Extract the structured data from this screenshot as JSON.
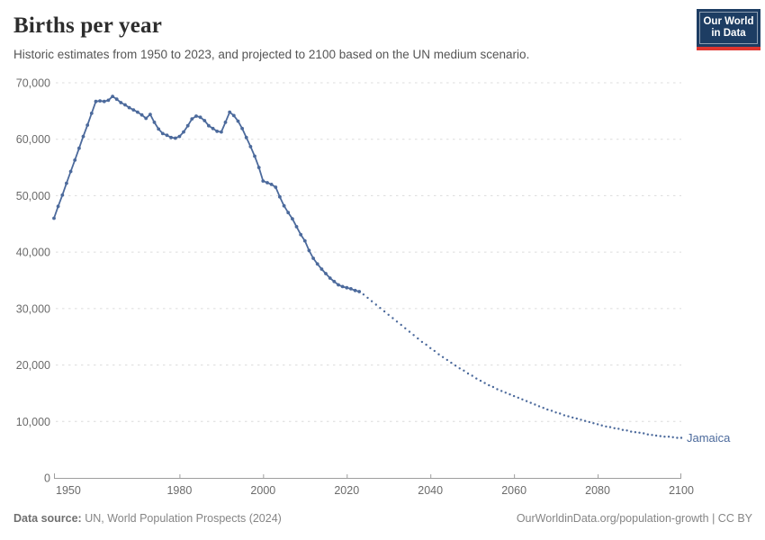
{
  "header": {
    "title": "Births per year",
    "subtitle": "Historic estimates from 1950 to 2023, and projected to 2100 based on the UN medium scenario.",
    "logo": {
      "line1": "Our World",
      "line2": "in Data",
      "bg": "#1d3d63",
      "accent": "#e0352f"
    }
  },
  "footer": {
    "source_label": "Data source:",
    "source_text": " UN, World Population Prospects (2024)",
    "right_text": "OurWorldinData.org/population-growth | CC BY"
  },
  "chart_data": {
    "type": "line",
    "title": "Births per year",
    "entity_label": "Jamaica",
    "line_color": "#4C6A9C",
    "grid": true,
    "grid_color": "#dcdcdc",
    "axis_color": "#9e9e9e",
    "tick_label_color": "#6b6b6b",
    "xlabel": "",
    "ylabel": "",
    "xlim": [
      1950,
      2100
    ],
    "ylim": [
      0,
      70000
    ],
    "xticks": [
      1950,
      1980,
      2000,
      2020,
      2040,
      2060,
      2080,
      2100
    ],
    "yticks": [
      0,
      10000,
      20000,
      30000,
      40000,
      50000,
      60000,
      70000
    ],
    "ytick_labels": [
      "0",
      "10,000",
      "20,000",
      "30,000",
      "40,000",
      "50,000",
      "60,000",
      "70,000"
    ],
    "series": [
      {
        "name": "historic-estimates",
        "style": "solid",
        "x_start": 1950,
        "values": [
          46000,
          48100,
          50100,
          52200,
          54300,
          56300,
          58400,
          60500,
          62500,
          64600,
          66700,
          66800,
          66700,
          66900,
          67600,
          67100,
          66500,
          66100,
          65600,
          65200,
          64800,
          64300,
          63700,
          64400,
          63000,
          61800,
          61000,
          60700,
          60300,
          60200,
          60500,
          61300,
          62400,
          63600,
          64100,
          63900,
          63300,
          62400,
          61900,
          61400,
          61300,
          63000,
          64800,
          64200,
          63200,
          61900,
          60300,
          58700,
          57000,
          55000,
          52600,
          52300,
          52000,
          51500,
          49800,
          48200,
          47000,
          45900,
          44500,
          43100,
          42000,
          40300,
          38900,
          37900,
          37000,
          36200,
          35400,
          34800,
          34200,
          33900,
          33700,
          33500,
          33200,
          33000
        ]
      },
      {
        "name": "un-medium-projection",
        "style": "dotted",
        "x_start": 2024,
        "values": [
          32500,
          31900,
          31300,
          30700,
          30100,
          29500,
          28900,
          28300,
          27700,
          27100,
          26500,
          25900,
          25300,
          24700,
          24100,
          23600,
          23000,
          22500,
          21900,
          21400,
          20900,
          20400,
          19900,
          19400,
          19000,
          18500,
          18100,
          17600,
          17200,
          16800,
          16400,
          16100,
          15700,
          15400,
          15100,
          14800,
          14500,
          14200,
          13900,
          13600,
          13300,
          13000,
          12700,
          12400,
          12100,
          11900,
          11600,
          11400,
          11100,
          10900,
          10700,
          10500,
          10300,
          10100,
          9900,
          9700,
          9500,
          9300,
          9100,
          9000,
          8800,
          8700,
          8500,
          8400,
          8200,
          8100,
          8000,
          7900,
          7700,
          7600,
          7500,
          7400,
          7300,
          7300,
          7200,
          7100,
          7100
        ]
      }
    ]
  }
}
